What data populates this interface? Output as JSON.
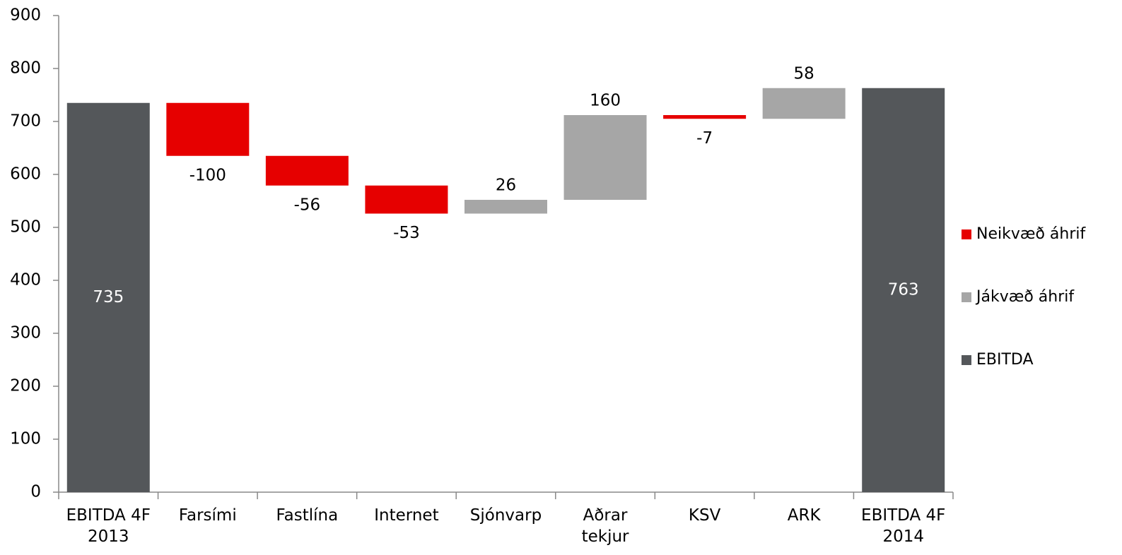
{
  "chart_data": {
    "type": "waterfall",
    "categories": [
      "EBITDA 4F 2013",
      "Farsími",
      "Fastlína",
      "Internet",
      "Sjónvarp",
      "Aðrar tekjur",
      "KSV",
      "ARK",
      "EBITDA 4F 2014"
    ],
    "series": [
      {
        "name": "Neikvæð áhrif",
        "color": "#e60000",
        "values": [
          null,
          -100,
          -56,
          -53,
          null,
          null,
          -7,
          null,
          null
        ]
      },
      {
        "name": "Jákvæð áhrif",
        "color": "#a6a6a6",
        "values": [
          null,
          null,
          null,
          null,
          26,
          160,
          null,
          58,
          null
        ]
      },
      {
        "name": "EBITDA",
        "color": "#54575a",
        "values": [
          735,
          null,
          null,
          null,
          null,
          null,
          null,
          null,
          763
        ]
      }
    ],
    "ylim": [
      0,
      900
    ],
    "yticks": [
      0,
      100,
      200,
      300,
      400,
      500,
      600,
      700,
      800,
      900
    ],
    "legend": "right"
  }
}
